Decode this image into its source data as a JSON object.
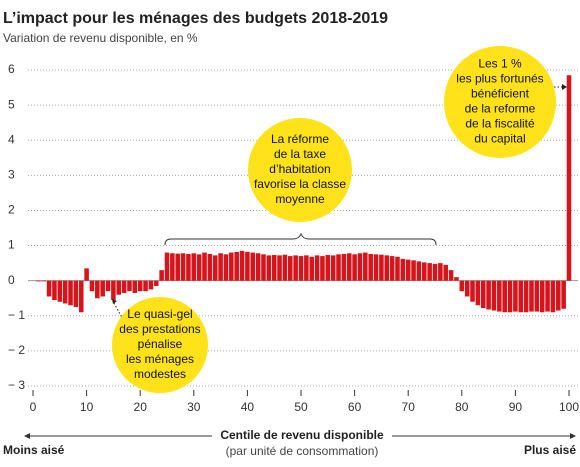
{
  "chart_data": {
    "type": "bar",
    "title": "L’impact pour les ménages des budgets 2018-2019",
    "subtitle": "Variation de revenu disponible, en %",
    "x_label": "Centile de revenu disponible",
    "x_sublabel": "(par unité de consommation)",
    "x_left_label": "Moins aisé",
    "x_right_label": "Plus aisé",
    "color": "#d5141b",
    "grid": true,
    "xlim": [
      0,
      100
    ],
    "ylim": [
      -3,
      6
    ],
    "xticks": [
      0,
      10,
      20,
      30,
      40,
      50,
      60,
      70,
      80,
      90,
      100
    ],
    "yticks": [
      6,
      5,
      4,
      3,
      2,
      1,
      0,
      {
        "value": -1,
        "label": "− 1"
      },
      {
        "value": -2,
        "label": "− 2"
      },
      {
        "value": -3,
        "label": "− 3"
      }
    ],
    "x": [
      1,
      2,
      3,
      4,
      5,
      6,
      7,
      8,
      9,
      10,
      11,
      12,
      13,
      14,
      15,
      16,
      17,
      18,
      19,
      20,
      21,
      22,
      23,
      24,
      25,
      26,
      27,
      28,
      29,
      30,
      31,
      32,
      33,
      34,
      35,
      36,
      37,
      38,
      39,
      40,
      41,
      42,
      43,
      44,
      45,
      46,
      47,
      48,
      49,
      50,
      51,
      52,
      53,
      54,
      55,
      56,
      57,
      58,
      59,
      60,
      61,
      62,
      63,
      64,
      65,
      66,
      67,
      68,
      69,
      70,
      71,
      72,
      73,
      74,
      75,
      76,
      77,
      78,
      79,
      80,
      81,
      82,
      83,
      84,
      85,
      86,
      87,
      88,
      89,
      90,
      91,
      92,
      93,
      94,
      95,
      96,
      97,
      98,
      99,
      100
    ],
    "values": [
      -0.02,
      -0.02,
      -0.45,
      -0.55,
      -0.6,
      -0.65,
      -0.7,
      -0.75,
      -0.9,
      0.35,
      -0.3,
      -0.5,
      -0.45,
      -0.3,
      -0.55,
      -0.4,
      -0.35,
      -0.3,
      -0.35,
      -0.3,
      -0.3,
      -0.25,
      -0.15,
      0.3,
      0.8,
      0.78,
      0.77,
      0.78,
      0.76,
      0.78,
      0.75,
      0.8,
      0.76,
      0.72,
      0.78,
      0.75,
      0.8,
      0.82,
      0.85,
      0.82,
      0.8,
      0.78,
      0.75,
      0.72,
      0.73,
      0.72,
      0.74,
      0.7,
      0.72,
      0.7,
      0.72,
      0.68,
      0.72,
      0.7,
      0.73,
      0.72,
      0.75,
      0.76,
      0.78,
      0.75,
      0.78,
      0.8,
      0.76,
      0.75,
      0.74,
      0.72,
      0.7,
      0.68,
      0.62,
      0.6,
      0.58,
      0.55,
      0.52,
      0.5,
      0.48,
      0.5,
      0.45,
      0.3,
      0.1,
      -0.3,
      -0.45,
      -0.6,
      -0.7,
      -0.78,
      -0.82,
      -0.85,
      -0.88,
      -0.9,
      -0.9,
      -0.88,
      -0.9,
      -0.9,
      -0.88,
      -0.88,
      -0.9,
      -0.88,
      -0.9,
      -0.85,
      -0.8,
      5.85
    ],
    "annotations": [
      {
        "lines": [
          "Le quasi-gel",
          "des prestations",
          "pénalise",
          "les ménages",
          "modestes"
        ]
      },
      {
        "lines": [
          "La réforme",
          "de la taxe",
          "d’habitation",
          "favorise la classe",
          "moyenne"
        ]
      },
      {
        "lines": [
          "Les 1 %",
          "les plus fortunés",
          "bénéficient",
          "de la reforme",
          "de la fiscalité",
          "du capital"
        ]
      }
    ]
  }
}
